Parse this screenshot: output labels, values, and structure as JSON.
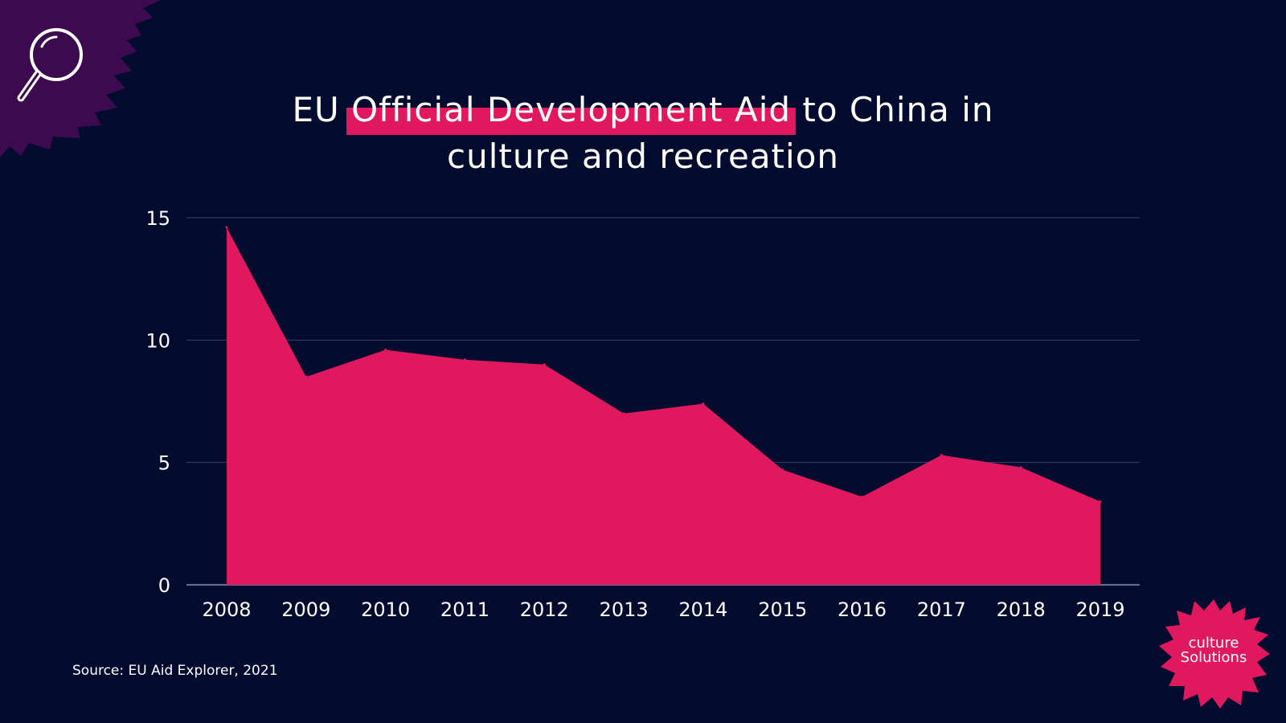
{
  "title": {
    "pre": "EU ",
    "highlight": "Official Development Aid",
    "post": " to China in",
    "line2": "culture and recreation"
  },
  "source": "Source: EU Aid Explorer, 2021",
  "logo": {
    "line1": "culture",
    "line2": "Solutions"
  },
  "colors": {
    "background": "#030b2e",
    "accent": "#e0195f",
    "corner_splash": "#3d0a4f",
    "gridline": "#3a4266",
    "text": "#ffffff"
  },
  "icons": {
    "corner": "magnifying-glass-icon"
  },
  "chart_data": {
    "type": "area",
    "title": "EU Official Development Aid to China in culture and recreation",
    "x": [
      "2008",
      "2009",
      "2010",
      "2011",
      "2012",
      "2013",
      "2014",
      "2015",
      "2016",
      "2017",
      "2018",
      "2019"
    ],
    "series": [
      {
        "values": [
          14.6,
          8.5,
          9.6,
          9.2,
          9.0,
          7.0,
          7.4,
          4.7,
          3.6,
          5.3,
          4.8,
          3.4
        ]
      }
    ],
    "ylim": [
      0,
      15
    ],
    "yticks": [
      "0",
      "5",
      "10",
      "15"
    ],
    "xlabel": "",
    "ylabel": "",
    "grid": true,
    "legend": "none"
  }
}
